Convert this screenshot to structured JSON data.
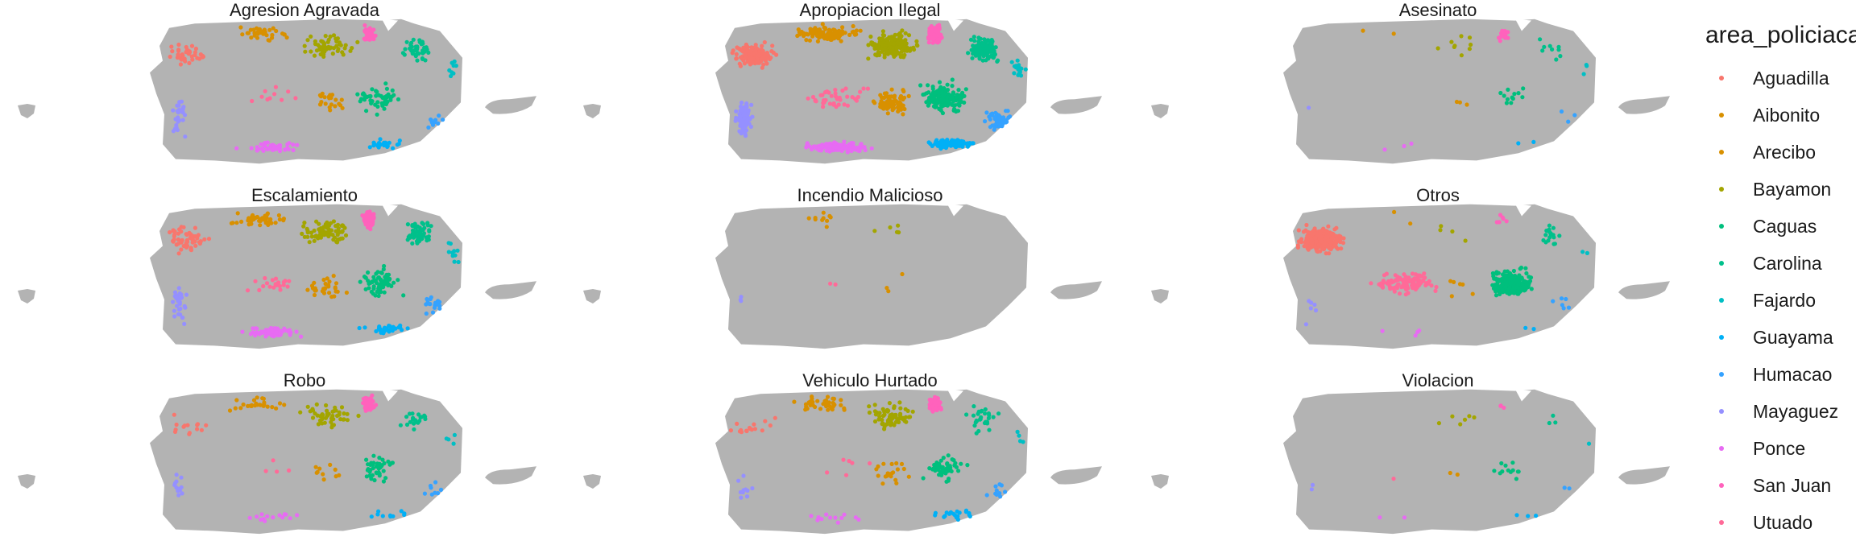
{
  "chart_data": {
    "type": "scatter",
    "subtype": "faceted point map of Puerto Rico",
    "map_fill": "#b3b3b3",
    "legend": {
      "title": "area_policiaca",
      "placement": "right",
      "entries": [
        {
          "name": "Aguadilla",
          "color": "#F8766D"
        },
        {
          "name": "Aibonito",
          "color": "#D89000"
        },
        {
          "name": "Arecibo",
          "color": "#D89000"
        },
        {
          "name": "Bayamon",
          "color": "#A3A500"
        },
        {
          "name": "Caguas",
          "color": "#00BF7D"
        },
        {
          "name": "Carolina",
          "color": "#00C08B"
        },
        {
          "name": "Fajardo",
          "color": "#00BFC4"
        },
        {
          "name": "Guayama",
          "color": "#00B0F6"
        },
        {
          "name": "Humacao",
          "color": "#35A2FF"
        },
        {
          "name": "Mayaguez",
          "color": "#9590FF"
        },
        {
          "name": "Ponce",
          "color": "#E76BF3"
        },
        {
          "name": "San Juan",
          "color": "#FF62BC"
        },
        {
          "name": "Utuado",
          "color": "#FF6A98"
        }
      ]
    },
    "facets": [
      {
        "title": "Agresion Agravada",
        "counts": {
          "Aguadilla": 38,
          "Aibonito": 34,
          "Arecibo": 22,
          "Bayamon": 55,
          "Caguas": 48,
          "Carolina": 40,
          "Fajardo": 8,
          "Guayama": 22,
          "Humacao": 10,
          "Mayaguez": 26,
          "Ponce": 44,
          "San Juan": 45,
          "Utuado": 10
        }
      },
      {
        "title": "Apropiacion Ilegal",
        "counts": {
          "Aguadilla": 160,
          "Aibonito": 110,
          "Arecibo": 70,
          "Bayamon": 180,
          "Caguas": 150,
          "Carolina": 130,
          "Fajardo": 16,
          "Guayama": 90,
          "Humacao": 60,
          "Mayaguez": 95,
          "Ponce": 140,
          "San Juan": 230,
          "Utuado": 40
        }
      },
      {
        "title": "Asesinato",
        "counts": {
          "Aguadilla": 0,
          "Aibonito": 2,
          "Arecibo": 3,
          "Bayamon": 9,
          "Caguas": 12,
          "Carolina": 9,
          "Fajardo": 3,
          "Guayama": 2,
          "Humacao": 3,
          "Mayaguez": 1,
          "Ponce": 3,
          "San Juan": 20,
          "Utuado": 0
        }
      },
      {
        "title": "Escalamiento",
        "counts": {
          "Aguadilla": 60,
          "Aibonito": 50,
          "Arecibo": 30,
          "Bayamon": 80,
          "Caguas": 70,
          "Carolina": 60,
          "Fajardo": 10,
          "Guayama": 30,
          "Humacao": 20,
          "Mayaguez": 35,
          "Ponce": 70,
          "San Juan": 90,
          "Utuado": 20
        }
      },
      {
        "title": "Incendio Malicioso",
        "counts": {
          "Aguadilla": 0,
          "Aibonito": 10,
          "Arecibo": 3,
          "Bayamon": 5,
          "Caguas": 0,
          "Carolina": 0,
          "Fajardo": 0,
          "Guayama": 0,
          "Humacao": 0,
          "Mayaguez": 3,
          "Ponce": 0,
          "San Juan": 0,
          "Utuado": 2
        }
      },
      {
        "title": "Otros",
        "counts": {
          "Aguadilla": 320,
          "Aibonito": 2,
          "Arecibo": 6,
          "Bayamon": 4,
          "Caguas": 220,
          "Carolina": 18,
          "Fajardo": 2,
          "Guayama": 2,
          "Humacao": 6,
          "Mayaguez": 6,
          "Ponce": 4,
          "San Juan": 6,
          "Utuado": 110
        }
      },
      {
        "title": "Robo",
        "counts": {
          "Aguadilla": 14,
          "Aibonito": 26,
          "Arecibo": 10,
          "Bayamon": 50,
          "Caguas": 40,
          "Carolina": 20,
          "Fajardo": 4,
          "Guayama": 10,
          "Humacao": 8,
          "Mayaguez": 12,
          "Ponce": 14,
          "San Juan": 70,
          "Utuado": 4
        }
      },
      {
        "title": "Vehiculo Hurtado",
        "counts": {
          "Aguadilla": 16,
          "Aibonito": 40,
          "Arecibo": 20,
          "Bayamon": 70,
          "Caguas": 50,
          "Carolina": 28,
          "Fajardo": 4,
          "Guayama": 20,
          "Humacao": 10,
          "Mayaguez": 10,
          "Ponce": 12,
          "San Juan": 80,
          "Utuado": 6
        }
      },
      {
        "title": "Violacion",
        "counts": {
          "Aguadilla": 0,
          "Aibonito": 0,
          "Arecibo": 2,
          "Bayamon": 6,
          "Caguas": 12,
          "Carolina": 3,
          "Fajardo": 1,
          "Guayama": 3,
          "Humacao": 2,
          "Mayaguez": 2,
          "Ponce": 2,
          "San Juan": 3,
          "Utuado": 1
        }
      }
    ]
  }
}
